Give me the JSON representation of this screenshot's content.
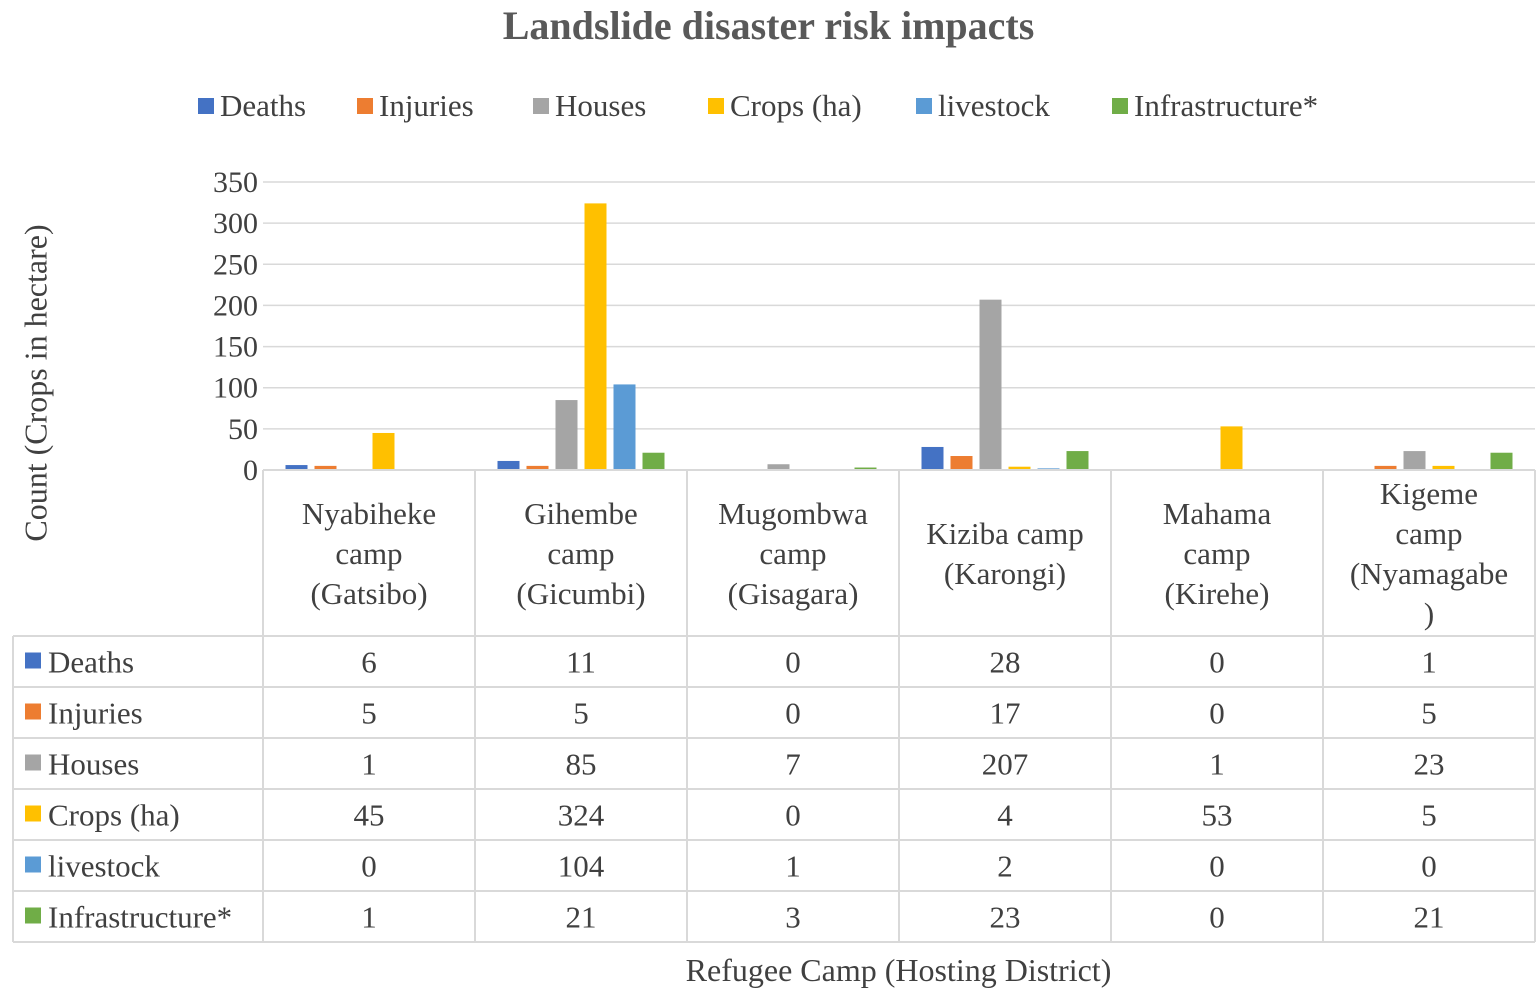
{
  "chart_data": {
    "type": "bar",
    "title": "Landslide disaster risk impacts",
    "xlabel": "Refugee Camp (Hosting District)",
    "ylabel": "Count (Crops in hectare)",
    "ylim": [
      0,
      350
    ],
    "yticks": [
      0,
      50,
      100,
      150,
      200,
      250,
      300,
      350
    ],
    "grid": true,
    "legend_position": "top",
    "data_table": true,
    "categories": [
      [
        "Nyabiheke",
        "camp",
        "(Gatsibo)"
      ],
      [
        "Gihembe",
        "camp",
        "(Gicumbi)"
      ],
      [
        "Mugombwa",
        "camp",
        "(Gisagara)"
      ],
      [
        "Kiziba camp",
        "(Karongi)"
      ],
      [
        "Mahama",
        "camp",
        "(Kirehe)"
      ],
      [
        "Kigeme",
        "camp",
        "(Nyamagabe",
        ")"
      ]
    ],
    "series": [
      {
        "name": "Deaths",
        "color": "#4472C4",
        "values": [
          6,
          11,
          0,
          28,
          0,
          1
        ]
      },
      {
        "name": "Injuries",
        "color": "#ED7D31",
        "values": [
          5,
          5,
          0,
          17,
          0,
          5
        ]
      },
      {
        "name": "Houses",
        "color": "#A5A5A5",
        "values": [
          1,
          85,
          7,
          207,
          1,
          23
        ]
      },
      {
        "name": "Crops (ha)",
        "color": "#FFC000",
        "values": [
          45,
          324,
          0,
          4,
          53,
          5
        ]
      },
      {
        "name": "livestock",
        "color": "#5B9BD5",
        "values": [
          0,
          104,
          1,
          2,
          0,
          0
        ]
      },
      {
        "name": "Infrastructure*",
        "color": "#70AD47",
        "values": [
          1,
          21,
          3,
          23,
          0,
          21
        ]
      }
    ]
  }
}
